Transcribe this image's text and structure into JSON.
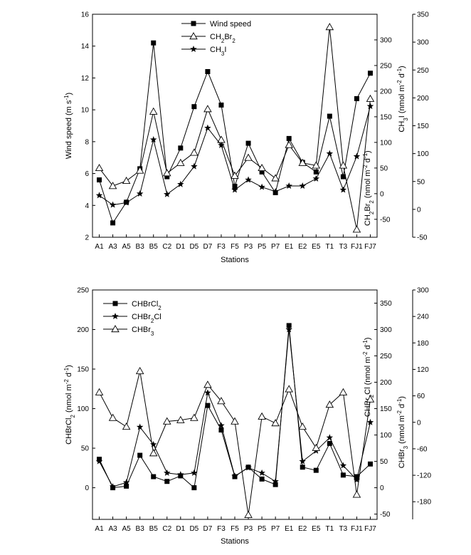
{
  "chart_data": [
    {
      "type": "line",
      "xlabel": "Stations",
      "categories": [
        "A1",
        "A3",
        "A5",
        "B3",
        "B5",
        "C2",
        "D1",
        "D5",
        "D7",
        "F3",
        "F5",
        "P3",
        "P5",
        "P7",
        "E1",
        "E2",
        "E5",
        "T1",
        "T3",
        "FJ1",
        "FJ7"
      ],
      "axes": {
        "left": {
          "label": "Wind speed (m s-1)",
          "ticks": [
            "2",
            "4",
            "6",
            "8",
            "10",
            "12",
            "14",
            "16"
          ],
          "range": [
            2,
            16
          ]
        },
        "right_inner": {
          "label": "CH2Br2 (nmol m-2 d-1)",
          "ticks": [
            "-50",
            "0",
            "50",
            "100",
            "150",
            "200",
            "250",
            "300"
          ],
          "range": [
            -85,
            350
          ]
        },
        "right_outer": {
          "label": "CH3I (nmol m-2 d-1)",
          "ticks": [
            "-50",
            "0",
            "50",
            "100",
            "150",
            "200",
            "250",
            "300",
            "350"
          ],
          "range": [
            -50,
            350
          ]
        }
      },
      "series": [
        {
          "name": "Wind speed",
          "marker": "square",
          "axis": "left",
          "values": [
            5.6,
            2.9,
            4.2,
            6.3,
            14.2,
            5.8,
            7.6,
            10.2,
            12.4,
            10.3,
            5.2,
            7.9,
            6.1,
            4.8,
            8.2,
            6.7,
            6.1,
            9.6,
            5.8,
            10.7,
            12.3
          ]
        },
        {
          "name": "CH2Br2",
          "marker": "triangle",
          "axis": "right_inner",
          "values": [
            50,
            15,
            25,
            45,
            160,
            40,
            60,
            80,
            165,
            105,
            35,
            70,
            50,
            30,
            95,
            60,
            55,
            325,
            55,
            -70,
            185
          ]
        },
        {
          "name": "CH3I",
          "marker": "star",
          "axis": "right_outer",
          "values": [
            25,
            8,
            12,
            28,
            125,
            27,
            45,
            77,
            146,
            115,
            35,
            53,
            40,
            32,
            42,
            42,
            55,
            100,
            35,
            95,
            185
          ]
        }
      ],
      "legend": [
        "Wind speed",
        "CH2Br2",
        "CH3I"
      ],
      "legend_placement": "top-center"
    },
    {
      "type": "line",
      "xlabel": "Stations",
      "categories": [
        "A1",
        "A3",
        "A5",
        "B3",
        "B5",
        "C2",
        "D1",
        "D5",
        "D7",
        "F3",
        "F5",
        "P3",
        "P5",
        "P7",
        "E1",
        "E2",
        "E5",
        "T1",
        "T3",
        "FJ1",
        "FJ7"
      ],
      "axes": {
        "left": {
          "label": "CHBrCl2 (nmol m-2 d-1)",
          "ticks": [
            "0",
            "50",
            "100",
            "150",
            "200",
            "250"
          ],
          "range": [
            -40,
            250
          ]
        },
        "right_inner": {
          "label": "CHBr2Cl (nmol m-2 d-1)",
          "ticks": [
            "-50",
            "0",
            "50",
            "100",
            "150",
            "200",
            "250",
            "300",
            "350"
          ],
          "range": [
            -60,
            375
          ]
        },
        "right_outer": {
          "label": "CHBr3 (nmol m-2 d-1)",
          "ticks": [
            "-180",
            "-120",
            "-60",
            "0",
            "60",
            "120",
            "180",
            "240",
            "300"
          ],
          "range": [
            -220,
            300
          ]
        }
      },
      "series": [
        {
          "name": "CHBrCl2",
          "marker": "square",
          "axis": "left",
          "values": [
            36,
            0,
            2,
            41,
            14,
            8,
            15,
            0,
            104,
            73,
            14,
            26,
            11,
            4,
            205,
            26,
            22,
            56,
            16,
            14,
            30
          ]
        },
        {
          "name": "CHBr2Cl",
          "marker": "star",
          "axis": "right_inner",
          "values": [
            50,
            2,
            10,
            115,
            82,
            28,
            25,
            28,
            180,
            118,
            22,
            38,
            28,
            12,
            300,
            50,
            70,
            95,
            42,
            15,
            124
          ]
        },
        {
          "name": "CHBr3",
          "marker": "triangle",
          "axis": "right_outer",
          "values": [
            68,
            10,
            -10,
            116,
            -70,
            2,
            5,
            10,
            85,
            48,
            2,
            -210,
            13,
            -2,
            75,
            -10,
            -58,
            40,
            68,
            -164,
            52
          ]
        }
      ],
      "legend": [
        "CHBrCl2",
        "CHBr2Cl",
        "CHBr3"
      ],
      "legend_placement": "top-left"
    }
  ]
}
